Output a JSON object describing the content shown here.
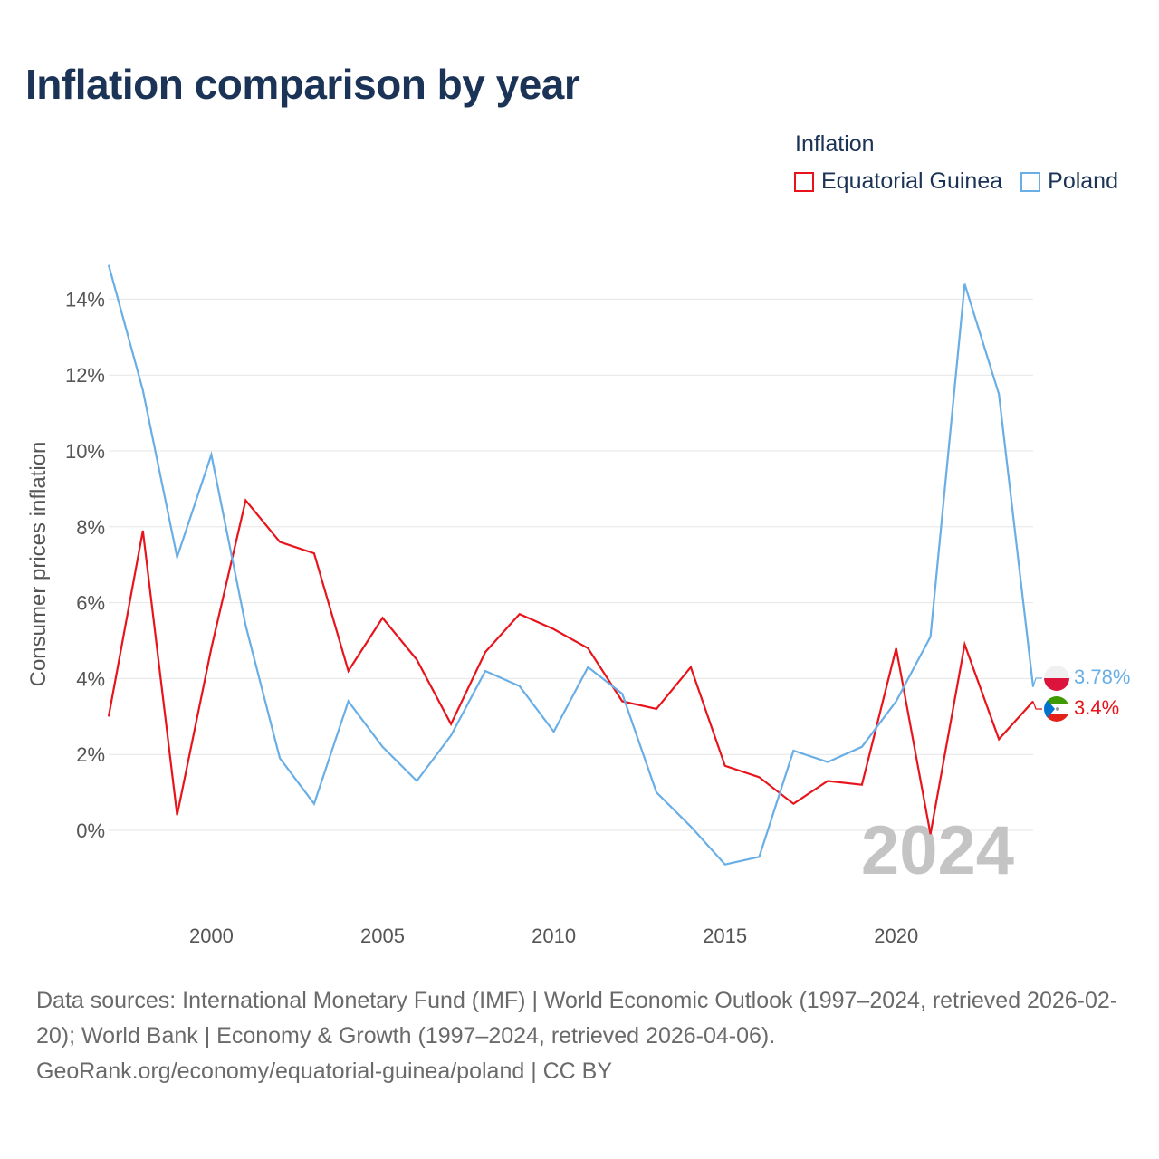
{
  "title": "Inflation comparison by year",
  "legend": {
    "title": "Inflation",
    "items": [
      {
        "label": "Equatorial Guinea",
        "color": "#e8141c"
      },
      {
        "label": "Poland",
        "color": "#6aaee6"
      }
    ]
  },
  "watermark_year": "2024",
  "source": {
    "line1": "Data sources: International Monetary Fund (IMF) | World Economic Outlook (1997–2024, retrieved 2026-02-20); World Bank | Economy & Growth (1997–2024, retrieved 2026-04-06).",
    "line2": "GeoRank.org/economy/equatorial-guinea/poland | CC BY"
  },
  "chart_data": {
    "type": "line",
    "title": "Inflation comparison by year",
    "xlabel": "",
    "ylabel": "Consumer prices inflation",
    "xlim": [
      1997,
      2024
    ],
    "ylim": [
      -2,
      15
    ],
    "y_ticks": [
      0,
      2,
      4,
      6,
      8,
      10,
      12,
      14
    ],
    "y_tick_labels": [
      "0%",
      "2%",
      "4%",
      "6%",
      "8%",
      "10%",
      "12%",
      "14%"
    ],
    "x_ticks": [
      2000,
      2005,
      2010,
      2015,
      2020
    ],
    "x_tick_labels": [
      "2000",
      "2005",
      "2010",
      "2015",
      "2020"
    ],
    "x": [
      1997,
      1998,
      1999,
      2000,
      2001,
      2002,
      2003,
      2004,
      2005,
      2006,
      2007,
      2008,
      2009,
      2010,
      2011,
      2012,
      2013,
      2014,
      2015,
      2016,
      2017,
      2018,
      2019,
      2020,
      2021,
      2022,
      2023,
      2024
    ],
    "series": [
      {
        "name": "Equatorial Guinea",
        "color": "#e8141c",
        "values": [
          3.0,
          7.9,
          0.4,
          4.8,
          8.7,
          7.6,
          7.3,
          4.2,
          5.6,
          4.5,
          2.8,
          4.7,
          5.7,
          5.3,
          4.8,
          3.4,
          3.2,
          4.3,
          1.7,
          1.4,
          0.7,
          1.3,
          1.2,
          4.8,
          -0.1,
          4.9,
          2.4,
          3.4
        ],
        "end_label": "3.4%"
      },
      {
        "name": "Poland",
        "color": "#6aaee6",
        "values": [
          14.9,
          11.6,
          7.2,
          9.9,
          5.4,
          1.9,
          0.7,
          3.4,
          2.2,
          1.3,
          2.5,
          4.2,
          3.8,
          2.6,
          4.3,
          3.6,
          1.0,
          0.1,
          -0.9,
          -0.7,
          2.1,
          1.8,
          2.2,
          3.4,
          5.1,
          14.4,
          11.5,
          3.78
        ],
        "end_label": "3.78%"
      }
    ]
  }
}
